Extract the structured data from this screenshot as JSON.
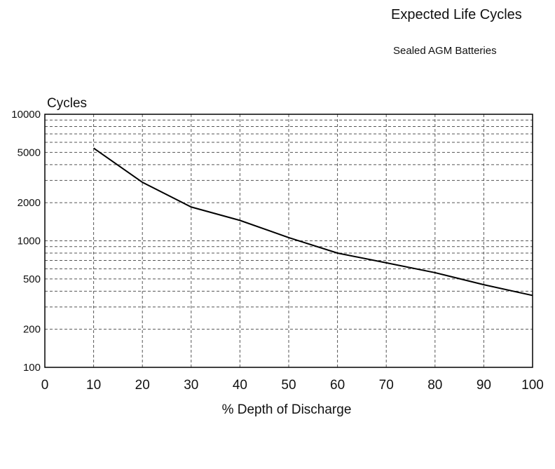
{
  "chart_data": {
    "type": "line",
    "title": "Expected Life Cycles",
    "subtitle": "Sealed AGM Batteries",
    "ylabel": "Cycles",
    "xlabel": "% Depth of Discharge",
    "xlim": [
      0,
      100
    ],
    "ylim": [
      100,
      10000
    ],
    "yscale": "log",
    "grid": true,
    "x_ticks": [
      "0",
      "10",
      "20",
      "30",
      "40",
      "50",
      "60",
      "70",
      "80",
      "90",
      "100"
    ],
    "y_ticks": [
      "100",
      "200",
      "500",
      "1000",
      "2000",
      "5000",
      "10000"
    ],
    "series": [
      {
        "x": [
          10,
          20,
          30,
          40,
          50,
          60,
          70,
          80,
          90,
          100
        ],
        "y": [
          5400,
          2900,
          1850,
          1450,
          1060,
          800,
          670,
          560,
          450,
          370
        ]
      }
    ]
  }
}
